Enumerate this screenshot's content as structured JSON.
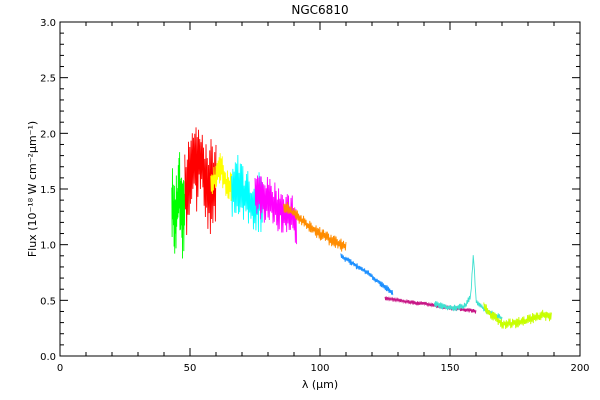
{
  "chart_data": {
    "type": "line",
    "title": "NGC6810",
    "xlabel": "λ (μm)",
    "ylabel": "Flux (10⁻¹⁸ W cm⁻²μm⁻¹)",
    "xlim": [
      0,
      200
    ],
    "ylim": [
      0.0,
      3.0
    ],
    "x_ticks": [
      0,
      50,
      100,
      150,
      200
    ],
    "y_ticks": [
      0.0,
      0.5,
      1.0,
      1.5,
      2.0,
      2.5,
      3.0
    ],
    "x_tick_labels": [
      "0",
      "50",
      "100",
      "150",
      "200"
    ],
    "y_tick_labels": [
      "0.0",
      "0.5",
      "1.0",
      "1.5",
      "2.0",
      "2.5",
      "3.0"
    ],
    "grid": false,
    "legend": "none",
    "series": [
      {
        "color": "#00ff00",
        "x": [
          43,
          44,
          45,
          46,
          47,
          48
        ],
        "y": [
          1.4,
          1.2,
          1.3,
          1.5,
          1.2,
          1.3
        ],
        "noise": 0.35
      },
      {
        "color": "#ff0000",
        "x": [
          48,
          50,
          52,
          54,
          56,
          58,
          60
        ],
        "y": [
          1.5,
          1.6,
          1.7,
          1.8,
          1.6,
          1.5,
          1.6
        ],
        "noise": 0.45
      },
      {
        "color": "#ffff00",
        "x": [
          58,
          60,
          62,
          64,
          66
        ],
        "y": [
          1.55,
          1.6,
          1.7,
          1.55,
          1.5
        ],
        "noise": 0.15
      },
      {
        "color": "#00ffff",
        "x": [
          66,
          68,
          70,
          72,
          74,
          76,
          78
        ],
        "y": [
          1.5,
          1.55,
          1.5,
          1.4,
          1.35,
          1.4,
          1.35
        ],
        "noise": 0.28
      },
      {
        "color": "#ff00ff",
        "x": [
          75,
          78,
          80,
          83,
          86,
          89,
          91
        ],
        "y": [
          1.45,
          1.4,
          1.4,
          1.35,
          1.3,
          1.25,
          1.2
        ],
        "noise": 0.22
      },
      {
        "color": "#ff8c00",
        "x": [
          86,
          90,
          95,
          100,
          105,
          110
        ],
        "y": [
          1.35,
          1.28,
          1.18,
          1.1,
          1.03,
          0.98
        ],
        "noise": 0.06
      },
      {
        "color": "#1e90ff",
        "x": [
          108,
          112,
          118,
          124,
          128
        ],
        "y": [
          0.9,
          0.84,
          0.75,
          0.64,
          0.57
        ],
        "noise": 0.03
      },
      {
        "color": "#c71585",
        "x": [
          125,
          130,
          135,
          140,
          145,
          150,
          155,
          160
        ],
        "y": [
          0.52,
          0.5,
          0.48,
          0.47,
          0.45,
          0.43,
          0.42,
          0.4
        ],
        "noise": 0.02
      },
      {
        "color": "#40e0d0",
        "x": [
          144,
          148,
          152,
          156,
          158,
          159,
          160,
          163,
          166,
          170
        ],
        "y": [
          0.47,
          0.44,
          0.43,
          0.45,
          0.55,
          0.92,
          0.5,
          0.42,
          0.38,
          0.34
        ],
        "noise": 0.03
      },
      {
        "color": "#c8ff00",
        "x": [
          163,
          166,
          170,
          174,
          178,
          182,
          186,
          189
        ],
        "y": [
          0.45,
          0.37,
          0.29,
          0.29,
          0.31,
          0.34,
          0.37,
          0.35
        ],
        "noise": 0.05
      }
    ]
  }
}
